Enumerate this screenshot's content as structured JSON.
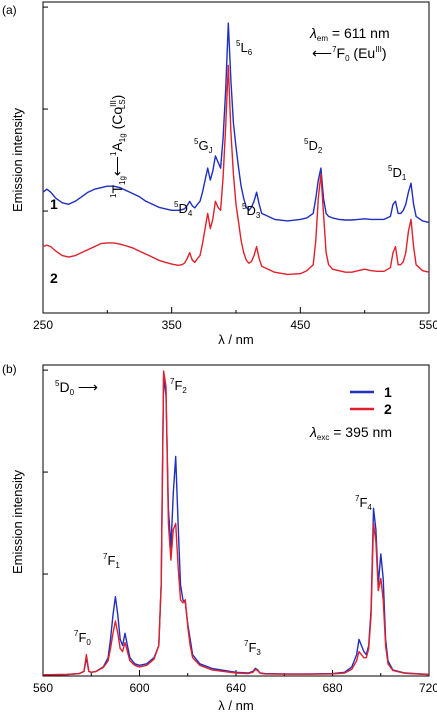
{
  "chart_data": [
    {
      "panel": "(a)",
      "type": "line",
      "xlabel": "λ / nm",
      "ylabel": "Emission intensity",
      "xlim": [
        250,
        550
      ],
      "ylim": [
        0,
        1.03
      ],
      "xticks": [
        250,
        350,
        450,
        550
      ],
      "legend": "none",
      "annotations": {
        "lambda_em": "λem = 611 nm",
        "excitation_origin": "←7F0 (EuIII)",
        "co_band": "1T1g←1A1g (CoIIILS)",
        "5D4": "5D4",
        "5GJ": "5GJ",
        "5L6": "5L6",
        "5D3": "5D3",
        "5D2": "5D2",
        "5D1": "5D1"
      },
      "series": [
        {
          "name": "1",
          "color": "#1f2fbf",
          "x": [
            250,
            253,
            256,
            260,
            265,
            270,
            275,
            280,
            285,
            290,
            295,
            300,
            305,
            310,
            315,
            320,
            325,
            330,
            335,
            340,
            345,
            350,
            355,
            358,
            360,
            362,
            364,
            366,
            368,
            370,
            372,
            374,
            376,
            378,
            380,
            382,
            384,
            386,
            388,
            390,
            392,
            394,
            396,
            398,
            400,
            402,
            404,
            406,
            408,
            410,
            412,
            414,
            416,
            418,
            420,
            425,
            430,
            440,
            450,
            455,
            460,
            462,
            464,
            466,
            468,
            470,
            472,
            475,
            480,
            485,
            490,
            495,
            500,
            505,
            510,
            515,
            520,
            522,
            524,
            526,
            528,
            530,
            532,
            534,
            536,
            538,
            540,
            545,
            550
          ],
          "y": [
            0.4,
            0.41,
            0.4,
            0.38,
            0.365,
            0.36,
            0.37,
            0.385,
            0.4,
            0.41,
            0.415,
            0.42,
            0.42,
            0.415,
            0.405,
            0.395,
            0.385,
            0.37,
            0.36,
            0.35,
            0.345,
            0.34,
            0.34,
            0.342,
            0.345,
            0.355,
            0.37,
            0.355,
            0.348,
            0.36,
            0.37,
            0.4,
            0.44,
            0.48,
            0.44,
            0.47,
            0.52,
            0.5,
            0.48,
            0.58,
            0.74,
            0.96,
            0.77,
            0.63,
            0.55,
            0.48,
            0.42,
            0.38,
            0.35,
            0.34,
            0.35,
            0.37,
            0.4,
            0.36,
            0.33,
            0.32,
            0.31,
            0.305,
            0.31,
            0.315,
            0.33,
            0.38,
            0.44,
            0.48,
            0.38,
            0.33,
            0.32,
            0.315,
            0.31,
            0.308,
            0.308,
            0.31,
            0.312,
            0.31,
            0.31,
            0.31,
            0.32,
            0.36,
            0.37,
            0.33,
            0.33,
            0.34,
            0.36,
            0.4,
            0.43,
            0.36,
            0.32,
            0.305,
            0.3
          ]
        },
        {
          "name": "2",
          "color": "#e0212b",
          "x": [
            250,
            253,
            256,
            260,
            265,
            270,
            275,
            280,
            285,
            290,
            295,
            300,
            305,
            310,
            315,
            320,
            325,
            330,
            335,
            340,
            345,
            350,
            355,
            358,
            360,
            362,
            364,
            366,
            368,
            370,
            372,
            374,
            376,
            378,
            380,
            382,
            384,
            386,
            388,
            390,
            392,
            394,
            396,
            398,
            400,
            402,
            404,
            406,
            408,
            410,
            412,
            414,
            416,
            418,
            420,
            425,
            430,
            440,
            450,
            455,
            460,
            462,
            464,
            466,
            468,
            470,
            472,
            475,
            480,
            485,
            490,
            495,
            500,
            505,
            510,
            515,
            520,
            522,
            524,
            526,
            528,
            530,
            532,
            534,
            536,
            538,
            540,
            545,
            550
          ],
          "y": [
            0.22,
            0.225,
            0.22,
            0.205,
            0.19,
            0.185,
            0.19,
            0.2,
            0.21,
            0.22,
            0.23,
            0.232,
            0.232,
            0.228,
            0.222,
            0.215,
            0.205,
            0.195,
            0.185,
            0.175,
            0.168,
            0.162,
            0.158,
            0.16,
            0.165,
            0.18,
            0.2,
            0.175,
            0.168,
            0.18,
            0.19,
            0.23,
            0.28,
            0.33,
            0.28,
            0.31,
            0.37,
            0.35,
            0.34,
            0.45,
            0.62,
            0.82,
            0.6,
            0.46,
            0.36,
            0.3,
            0.24,
            0.2,
            0.175,
            0.165,
            0.17,
            0.19,
            0.22,
            0.18,
            0.155,
            0.145,
            0.135,
            0.128,
            0.13,
            0.14,
            0.16,
            0.24,
            0.38,
            0.46,
            0.33,
            0.2,
            0.16,
            0.145,
            0.14,
            0.135,
            0.135,
            0.14,
            0.145,
            0.14,
            0.138,
            0.138,
            0.15,
            0.2,
            0.22,
            0.16,
            0.16,
            0.17,
            0.2,
            0.27,
            0.31,
            0.22,
            0.16,
            0.14,
            0.135
          ]
        }
      ]
    },
    {
      "panel": "(b)",
      "type": "line",
      "xlabel": "λ / nm",
      "ylabel": "Emission intensity",
      "xlim": [
        560,
        720
      ],
      "ylim": [
        0,
        1.02
      ],
      "xticks": [
        560,
        600,
        640,
        680,
        720
      ],
      "legend": "top-right",
      "annotations": {
        "origin": "5D0 →",
        "lambda_exc": "λexc = 395 nm",
        "7F0": "7F0",
        "7F1": "7F1",
        "7F2": "7F2",
        "7F3": "7F3",
        "7F4": "7F4"
      },
      "series": [
        {
          "name": "1",
          "color": "#1f2fbf",
          "x": [
            560,
            570,
            575,
            577,
            578,
            579,
            580,
            582,
            585,
            587,
            588,
            589,
            590,
            591,
            592,
            593,
            594,
            595,
            596,
            598,
            600,
            603,
            606,
            608,
            609,
            610,
            611,
            612,
            613,
            614,
            615,
            616,
            617,
            618,
            619,
            620,
            621,
            622,
            625,
            630,
            640,
            645,
            647,
            648,
            649,
            650,
            652,
            660,
            670,
            680,
            685,
            688,
            690,
            691,
            692,
            693,
            694,
            695,
            696,
            697,
            698,
            699,
            700,
            701,
            702,
            703,
            705,
            710,
            720
          ],
          "y": [
            0.004,
            0.005,
            0.008,
            0.015,
            0.06,
            0.015,
            0.012,
            0.015,
            0.03,
            0.06,
            0.12,
            0.2,
            0.26,
            0.2,
            0.12,
            0.1,
            0.14,
            0.1,
            0.06,
            0.04,
            0.035,
            0.04,
            0.06,
            0.1,
            0.3,
            0.98,
            0.92,
            0.55,
            0.42,
            0.6,
            0.72,
            0.5,
            0.3,
            0.25,
            0.24,
            0.17,
            0.12,
            0.07,
            0.04,
            0.025,
            0.012,
            0.01,
            0.015,
            0.025,
            0.02,
            0.01,
            0.008,
            0.007,
            0.007,
            0.008,
            0.012,
            0.03,
            0.07,
            0.12,
            0.1,
            0.08,
            0.07,
            0.1,
            0.22,
            0.55,
            0.48,
            0.3,
            0.4,
            0.32,
            0.12,
            0.05,
            0.02,
            0.01,
            0.005
          ]
        },
        {
          "name": "2",
          "color": "#e0212b",
          "x": [
            560,
            570,
            575,
            577,
            578,
            579,
            580,
            582,
            585,
            587,
            588,
            589,
            590,
            591,
            592,
            593,
            594,
            595,
            596,
            598,
            600,
            603,
            606,
            608,
            609,
            610,
            611,
            612,
            613,
            614,
            615,
            616,
            617,
            618,
            619,
            620,
            621,
            622,
            625,
            630,
            640,
            645,
            647,
            648,
            649,
            650,
            652,
            660,
            670,
            680,
            685,
            688,
            690,
            691,
            692,
            693,
            694,
            695,
            696,
            697,
            698,
            699,
            700,
            701,
            702,
            703,
            705,
            710,
            720
          ],
          "y": [
            0.004,
            0.005,
            0.008,
            0.015,
            0.07,
            0.015,
            0.012,
            0.015,
            0.028,
            0.05,
            0.09,
            0.14,
            0.18,
            0.14,
            0.09,
            0.08,
            0.11,
            0.08,
            0.05,
            0.035,
            0.03,
            0.035,
            0.055,
            0.1,
            0.3,
            1.0,
            0.95,
            0.5,
            0.38,
            0.48,
            0.5,
            0.36,
            0.25,
            0.24,
            0.25,
            0.16,
            0.1,
            0.06,
            0.035,
            0.02,
            0.01,
            0.008,
            0.012,
            0.022,
            0.018,
            0.009,
            0.007,
            0.006,
            0.006,
            0.007,
            0.01,
            0.022,
            0.05,
            0.08,
            0.07,
            0.06,
            0.06,
            0.09,
            0.2,
            0.5,
            0.44,
            0.28,
            0.32,
            0.25,
            0.1,
            0.04,
            0.018,
            0.009,
            0.005
          ]
        }
      ]
    }
  ]
}
